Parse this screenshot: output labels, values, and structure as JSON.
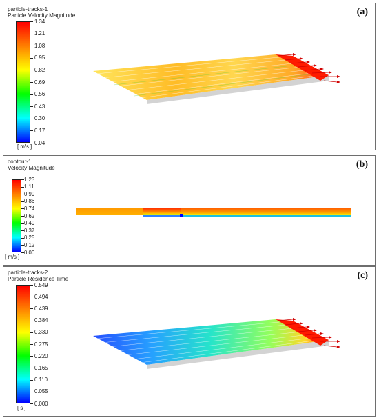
{
  "panels": [
    {
      "tag": "(a)",
      "title_1": "particle-tracks-1",
      "title_2": "Particle Velocity Magnitude",
      "unit": "[ m/s ]",
      "ticks": [
        "1.34",
        "1.21",
        "1.08",
        "0.95",
        "0.82",
        "0.69",
        "0.56",
        "0.43",
        "0.30",
        "0.17",
        "0.04"
      ],
      "colormap": "rainbow",
      "graphic": "particle-tracks-velocity"
    },
    {
      "tag": "(b)",
      "title_1": "contour-1",
      "title_2": "Velocity Magnitude",
      "unit": "[ m/s ]",
      "ticks": [
        "1.23",
        "1.11",
        "0.99",
        "0.86",
        "0.74",
        "0.62",
        "0.49",
        "0.37",
        "0.25",
        "0.12",
        "0.00"
      ],
      "colormap": "rainbow",
      "graphic": "velocity-contour"
    },
    {
      "tag": "(c)",
      "title_1": "particle-tracks-2",
      "title_2": "Particle Residence Time",
      "unit": "[ s ]",
      "ticks": [
        "0.549",
        "0.494",
        "0.439",
        "0.384",
        "0.330",
        "0.275",
        "0.220",
        "0.165",
        "0.110",
        "0.055",
        "0.000"
      ],
      "colormap": "rainbow",
      "graphic": "particle-tracks-residence-time"
    }
  ],
  "colors": {
    "colormap_stops": [
      "#ff0000",
      "#ff8000",
      "#ffff00",
      "#00ff00",
      "#00ffff",
      "#0000ff"
    ],
    "arrow": "#e00000"
  }
}
